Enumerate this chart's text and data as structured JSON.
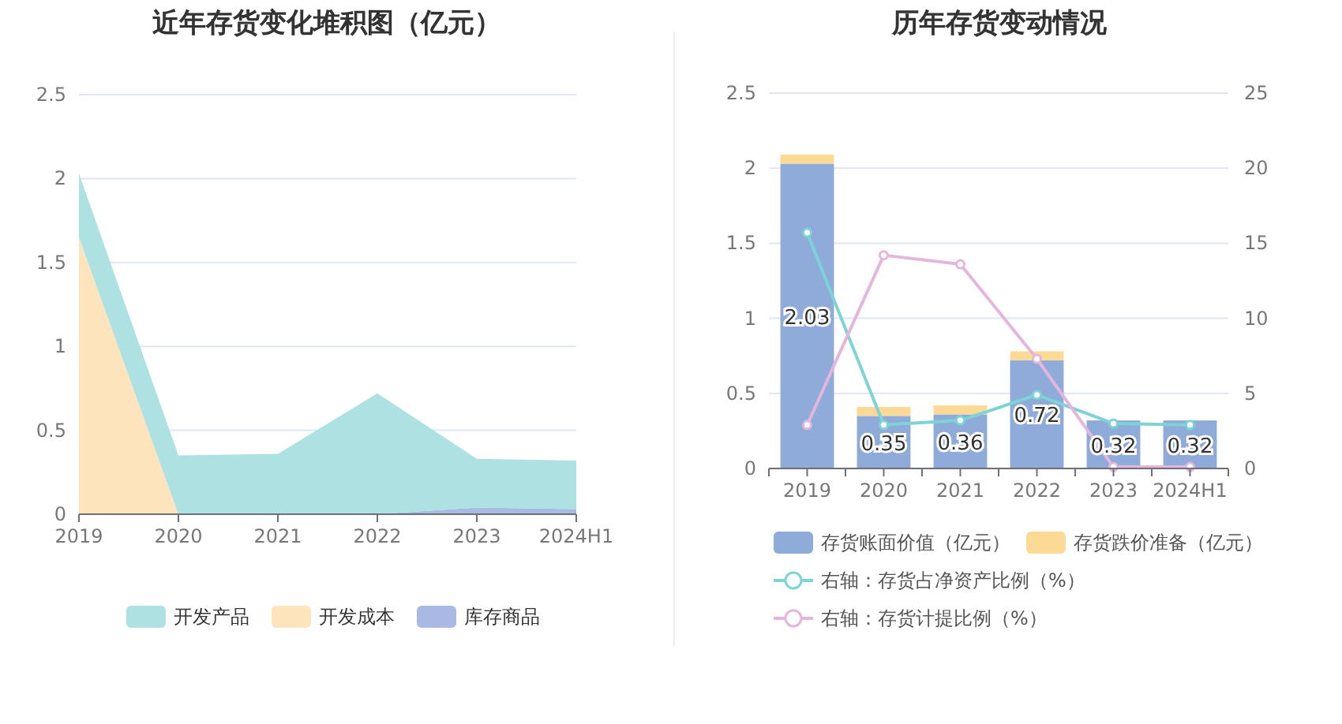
{
  "chart_data": [
    {
      "type": "area",
      "title": "近年存货变化堆积图（亿元）",
      "categories": [
        "2019",
        "2020",
        "2021",
        "2022",
        "2023",
        "2024H1"
      ],
      "stacked": true,
      "series": [
        {
          "name": "库存商品",
          "color": "#aab8e4",
          "values": [
            0,
            0,
            0,
            0,
            0.04,
            0.03
          ]
        },
        {
          "name": "开发成本",
          "color": "#fde4bd",
          "values": [
            1.65,
            0,
            0,
            0,
            0,
            0
          ]
        },
        {
          "name": "开发产品",
          "color": "#ade1e2",
          "values": [
            0.38,
            0.35,
            0.36,
            0.72,
            0.29,
            0.29
          ]
        }
      ],
      "ylim": [
        0,
        2.5
      ],
      "yticks": [
        0,
        0.5,
        1,
        1.5,
        2,
        2.5
      ],
      "grid": "y",
      "legend": "bottom"
    },
    {
      "type": "bar",
      "title": "历年存货变动情况",
      "categories": [
        "2019",
        "2020",
        "2021",
        "2022",
        "2023",
        "2024H1"
      ],
      "stacked": true,
      "series": [
        {
          "name": "存货账面价值（亿元）",
          "color": "#8eabd9",
          "values": [
            2.03,
            0.35,
            0.36,
            0.72,
            0.32,
            0.32
          ],
          "value_labels": [
            "2.03",
            "0.35",
            "0.36",
            "0.72",
            "0.32",
            "0.32"
          ]
        },
        {
          "name": "存货跌价准备（亿元）",
          "color": "#fdd996",
          "values": [
            0.06,
            0.06,
            0.06,
            0.06,
            0,
            0
          ]
        },
        {
          "name": "右轴：存货占净资产比例（%）",
          "type": "line",
          "axis": "y2",
          "color": "#7dd3d6",
          "values": [
            15.7,
            2.9,
            3.2,
            4.9,
            3.0,
            2.9
          ]
        },
        {
          "name": "右轴：存货计提比例（%）",
          "type": "line",
          "axis": "y2",
          "color": "#e5b6dc",
          "values": [
            2.9,
            14.2,
            13.6,
            7.3,
            0.1,
            0.1
          ]
        }
      ],
      "ylim": [
        0,
        2.5
      ],
      "yticks": [
        0,
        0.5,
        1,
        1.5,
        2,
        2.5
      ],
      "y2lim": [
        0,
        25
      ],
      "y2ticks": [
        0,
        5,
        10,
        15,
        20,
        25
      ],
      "grid": "y",
      "legend": "bottom",
      "marker": "circle"
    }
  ]
}
